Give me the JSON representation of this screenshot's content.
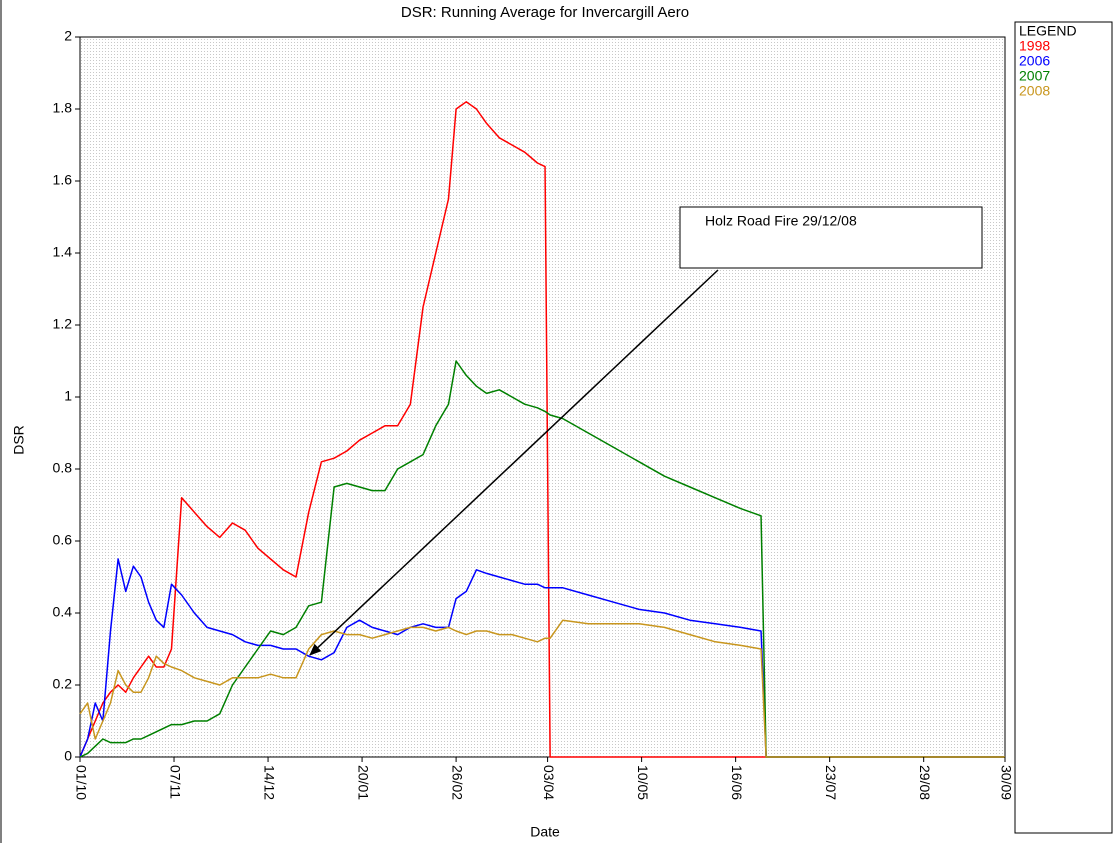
{
  "chart_data": {
    "type": "line",
    "title": "DSR: Running Average for Invercargill Aero",
    "xlabel": "Date",
    "ylabel": "DSR",
    "legend_title": "LEGEND",
    "annotation": "Holz Road Fire 29/12/08",
    "x": [
      0,
      3,
      6,
      9,
      12,
      15,
      18,
      21,
      24,
      27,
      30,
      33,
      36,
      40,
      45,
      50,
      55,
      60,
      65,
      70,
      75,
      80,
      85,
      90,
      95,
      100,
      105,
      110,
      115,
      120,
      125,
      130,
      135,
      140,
      145,
      148,
      152,
      156,
      160,
      165,
      170,
      175,
      180,
      183,
      185,
      190,
      200,
      210,
      220,
      230,
      240,
      250,
      260,
      268,
      270,
      280,
      300,
      330,
      364
    ],
    "xlim": [
      0,
      364
    ],
    "xticks": [
      {
        "value": 0,
        "label": "01/10"
      },
      {
        "value": 37,
        "label": "07/11"
      },
      {
        "value": 74,
        "label": "14/12"
      },
      {
        "value": 111,
        "label": "20/01"
      },
      {
        "value": 148,
        "label": "26/02"
      },
      {
        "value": 184,
        "label": "03/04"
      },
      {
        "value": 221,
        "label": "10/05"
      },
      {
        "value": 258,
        "label": "16/06"
      },
      {
        "value": 295,
        "label": "23/07"
      },
      {
        "value": 332,
        "label": "29/08"
      },
      {
        "value": 364,
        "label": "30/09"
      }
    ],
    "ylim": [
      0,
      2
    ],
    "yticks": [
      0,
      0.2,
      0.4,
      0.6,
      0.8,
      1,
      1.2,
      1.4,
      1.6,
      1.8,
      2
    ],
    "series": [
      {
        "name": "1998",
        "color": "#ff0000",
        "values": [
          0,
          0.05,
          0.1,
          0.15,
          0.18,
          0.2,
          0.18,
          0.22,
          0.25,
          0.28,
          0.25,
          0.25,
          0.3,
          0.72,
          0.68,
          0.64,
          0.61,
          0.65,
          0.63,
          0.58,
          0.55,
          0.52,
          0.5,
          0.68,
          0.82,
          0.83,
          0.85,
          0.88,
          0.9,
          0.92,
          0.92,
          0.98,
          1.25,
          1.4,
          1.55,
          1.8,
          1.82,
          1.8,
          1.76,
          1.72,
          1.7,
          1.68,
          1.65,
          1.64,
          0,
          0,
          0,
          0,
          0,
          0,
          0,
          0,
          0,
          0,
          0,
          0,
          0,
          0,
          0
        ]
      },
      {
        "name": "2006",
        "color": "#0000ff",
        "values": [
          0,
          0.05,
          0.15,
          0.1,
          0.35,
          0.55,
          0.46,
          0.53,
          0.5,
          0.43,
          0.38,
          0.36,
          0.48,
          0.45,
          0.4,
          0.36,
          0.35,
          0.34,
          0.32,
          0.31,
          0.31,
          0.3,
          0.3,
          0.28,
          0.27,
          0.29,
          0.36,
          0.38,
          0.36,
          0.35,
          0.34,
          0.36,
          0.37,
          0.36,
          0.36,
          0.44,
          0.46,
          0.52,
          0.51,
          0.5,
          0.49,
          0.48,
          0.48,
          0.47,
          0.47,
          0.47,
          0.45,
          0.43,
          0.41,
          0.4,
          0.38,
          0.37,
          0.36,
          0.35,
          0,
          0,
          0,
          0,
          0
        ]
      },
      {
        "name": "2007",
        "color": "#008000",
        "values": [
          0,
          0.01,
          0.03,
          0.05,
          0.04,
          0.04,
          0.04,
          0.05,
          0.05,
          0.06,
          0.07,
          0.08,
          0.09,
          0.09,
          0.1,
          0.1,
          0.12,
          0.2,
          0.25,
          0.3,
          0.35,
          0.34,
          0.36,
          0.42,
          0.43,
          0.75,
          0.76,
          0.75,
          0.74,
          0.74,
          0.8,
          0.82,
          0.84,
          0.92,
          0.98,
          1.1,
          1.06,
          1.03,
          1.01,
          1.02,
          1.0,
          0.98,
          0.97,
          0.96,
          0.95,
          0.94,
          0.9,
          0.86,
          0.82,
          0.78,
          0.75,
          0.72,
          0.69,
          0.67,
          0,
          0,
          0,
          0,
          0
        ]
      },
      {
        "name": "2008",
        "color": "#c8961e",
        "values": [
          0.12,
          0.15,
          0.05,
          0.1,
          0.15,
          0.24,
          0.2,
          0.18,
          0.18,
          0.22,
          0.28,
          0.26,
          0.25,
          0.24,
          0.22,
          0.21,
          0.2,
          0.22,
          0.22,
          0.22,
          0.23,
          0.22,
          0.22,
          0.3,
          0.34,
          0.35,
          0.34,
          0.34,
          0.33,
          0.34,
          0.35,
          0.36,
          0.36,
          0.35,
          0.36,
          0.35,
          0.34,
          0.35,
          0.35,
          0.34,
          0.34,
          0.33,
          0.32,
          0.33,
          0.33,
          0.38,
          0.37,
          0.37,
          0.37,
          0.36,
          0.34,
          0.32,
          0.31,
          0.3,
          0,
          0,
          0,
          0,
          0
        ]
      }
    ]
  }
}
